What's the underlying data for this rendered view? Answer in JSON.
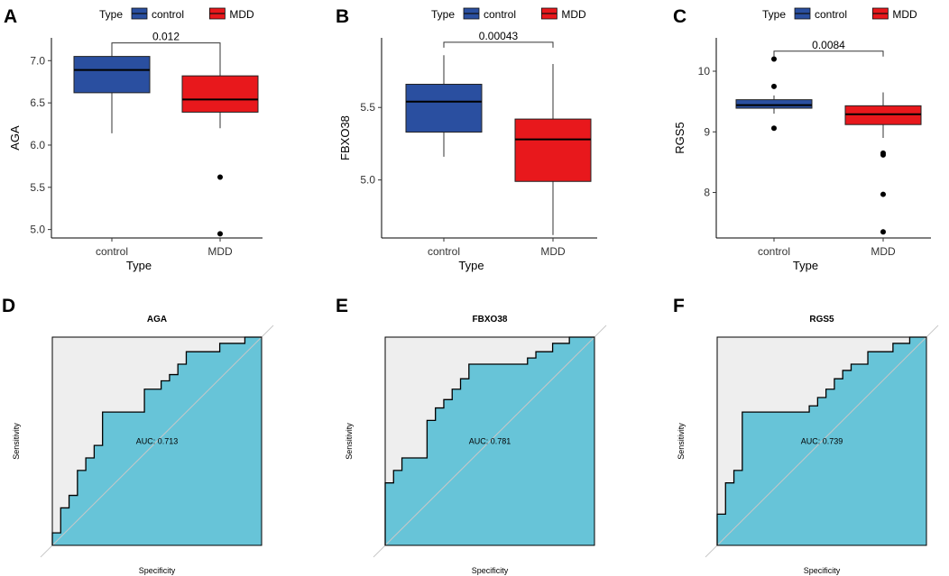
{
  "colors": {
    "control": "#2a4fa0",
    "mdd": "#e8181c",
    "roc_fill": "#67c4d8",
    "roc_bg": "#eeeeee"
  },
  "chart_data": [
    {
      "id": "A",
      "type": "box",
      "panel_label": "A",
      "legend": {
        "title": "Type",
        "items": [
          "control",
          "MDD"
        ]
      },
      "ylabel": "AGA",
      "xlabel": "Type",
      "categories": [
        "control",
        "MDD"
      ],
      "ylim": [
        4.9,
        7.27
      ],
      "yticks": [
        5.0,
        5.5,
        6.0,
        6.5,
        7.0
      ],
      "ytick_labels": [
        "5.0",
        "5.5",
        "6.0",
        "6.5",
        "7.0"
      ],
      "boxes": [
        {
          "q1": 6.62,
          "median": 6.89,
          "q3": 7.05,
          "lower": 6.14,
          "upper": 7.15,
          "outliers": []
        },
        {
          "q1": 6.39,
          "median": 6.54,
          "q3": 6.82,
          "lower": 6.2,
          "upper": 7.16,
          "outliers": [
            5.62,
            4.95
          ]
        }
      ],
      "pvalue": "0.012",
      "bracket_y": 7.21
    },
    {
      "id": "B",
      "type": "box",
      "panel_label": "B",
      "legend": {
        "title": "Type",
        "items": [
          "control",
          "MDD"
        ]
      },
      "ylabel": "FBXO38",
      "xlabel": "Type",
      "categories": [
        "control",
        "MDD"
      ],
      "ylim": [
        4.6,
        5.98
      ],
      "yticks": [
        5.0,
        5.5
      ],
      "ytick_labels": [
        "5.0",
        "5.5"
      ],
      "boxes": [
        {
          "q1": 5.33,
          "median": 5.54,
          "q3": 5.66,
          "lower": 5.16,
          "upper": 5.86,
          "outliers": []
        },
        {
          "q1": 4.99,
          "median": 5.28,
          "q3": 5.42,
          "lower": 4.62,
          "upper": 5.8,
          "outliers": []
        }
      ],
      "pvalue": "0.00043",
      "bracket_y": 5.95
    },
    {
      "id": "C",
      "type": "box",
      "panel_label": "C",
      "legend": {
        "title": "Type",
        "items": [
          "control",
          "MDD"
        ]
      },
      "ylabel": "RGS5",
      "xlabel": "Type",
      "categories": [
        "control",
        "MDD"
      ],
      "ylim": [
        7.25,
        10.55
      ],
      "yticks": [
        8,
        9,
        10
      ],
      "ytick_labels": [
        "8",
        "9",
        "10"
      ],
      "boxes": [
        {
          "q1": 9.39,
          "median": 9.44,
          "q3": 9.53,
          "lower": 9.3,
          "upper": 9.6,
          "outliers": [
            10.2,
            9.75,
            9.06
          ]
        },
        {
          "q1": 9.12,
          "median": 9.29,
          "q3": 9.43,
          "lower": 8.9,
          "upper": 9.65,
          "outliers": [
            8.65,
            8.62,
            7.97,
            7.35
          ]
        }
      ],
      "pvalue": "0.0084",
      "bracket_y": 10.33
    },
    {
      "id": "D",
      "type": "roc",
      "panel_label": "D",
      "title": "AGA",
      "auc_label": "AUC: 0.713",
      "xlabel": "Specificity",
      "ylabel": "Sensitivity",
      "fpr": [
        0,
        0,
        0.04,
        0.04,
        0.08,
        0.08,
        0.12,
        0.12,
        0.16,
        0.16,
        0.2,
        0.2,
        0.24,
        0.24,
        0.44,
        0.44,
        0.52,
        0.52,
        0.56,
        0.56,
        0.6,
        0.6,
        0.64,
        0.64,
        0.8,
        0.8,
        0.92,
        0.92,
        1
      ],
      "tpr": [
        0,
        0.06,
        0.06,
        0.18,
        0.18,
        0.24,
        0.24,
        0.36,
        0.36,
        0.42,
        0.42,
        0.48,
        0.48,
        0.64,
        0.64,
        0.75,
        0.75,
        0.79,
        0.79,
        0.82,
        0.82,
        0.87,
        0.87,
        0.93,
        0.93,
        0.97,
        0.97,
        1,
        1
      ]
    },
    {
      "id": "E",
      "type": "roc",
      "panel_label": "E",
      "title": "FBXO38",
      "auc_label": "AUC: 0.781",
      "xlabel": "Specificity",
      "ylabel": "Sensitivity",
      "fpr": [
        0,
        0,
        0.04,
        0.04,
        0.08,
        0.08,
        0.2,
        0.2,
        0.24,
        0.24,
        0.28,
        0.28,
        0.32,
        0.32,
        0.36,
        0.36,
        0.4,
        0.4,
        0.68,
        0.68,
        0.72,
        0.72,
        0.8,
        0.8,
        0.88,
        0.88,
        1
      ],
      "tpr": [
        0,
        0.3,
        0.3,
        0.36,
        0.36,
        0.42,
        0.42,
        0.6,
        0.6,
        0.66,
        0.66,
        0.7,
        0.7,
        0.75,
        0.75,
        0.8,
        0.8,
        0.87,
        0.87,
        0.9,
        0.9,
        0.93,
        0.93,
        0.97,
        0.97,
        1,
        1
      ]
    },
    {
      "id": "F",
      "type": "roc",
      "panel_label": "F",
      "title": "RGS5",
      "auc_label": "AUC: 0.739",
      "xlabel": "Specificity",
      "ylabel": "Sensitivity",
      "fpr": [
        0,
        0,
        0.04,
        0.04,
        0.08,
        0.08,
        0.12,
        0.12,
        0.44,
        0.44,
        0.48,
        0.48,
        0.52,
        0.52,
        0.56,
        0.56,
        0.6,
        0.6,
        0.64,
        0.64,
        0.72,
        0.72,
        0.84,
        0.84,
        0.92,
        0.92,
        1
      ],
      "tpr": [
        0,
        0.15,
        0.15,
        0.3,
        0.3,
        0.36,
        0.36,
        0.64,
        0.64,
        0.67,
        0.67,
        0.71,
        0.71,
        0.75,
        0.75,
        0.8,
        0.8,
        0.84,
        0.84,
        0.87,
        0.87,
        0.93,
        0.93,
        0.97,
        0.97,
        1,
        1
      ]
    }
  ]
}
